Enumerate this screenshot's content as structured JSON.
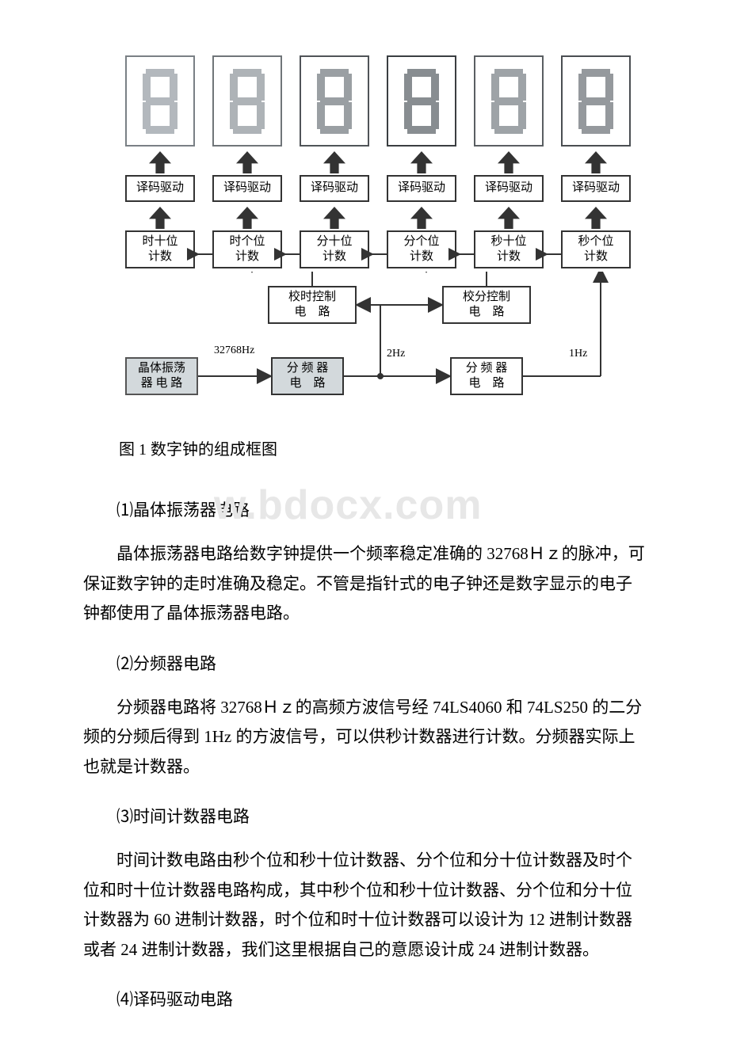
{
  "diagram": {
    "segments": [
      {
        "stroke": "#7a8085",
        "fill": "#b3b8bd"
      },
      {
        "stroke": "#707579",
        "fill": "#aeb3b7"
      },
      {
        "stroke": "#505458",
        "fill": "#9a9fa3"
      },
      {
        "stroke": "#3a3e41",
        "fill": "#888d91"
      },
      {
        "stroke": "#5a5e62",
        "fill": "#9ea3a7"
      },
      {
        "stroke": "#4a4e52",
        "fill": "#95999d"
      }
    ],
    "decode_label": "译码驱动",
    "count_labels": [
      "时十位\n计数",
      "时个位\n计数",
      "分十位\n计数",
      "分个位\n计数",
      "秒十位\n计数",
      "秒个位\n计数"
    ],
    "adj_hour_label": "校时控制\n电　路",
    "adj_min_label": "校分控制\n电　路",
    "osc_label": "晶体振荡\n器 电 路",
    "div1_label": "分 频 器\n电　路",
    "div2_label": "分 频 器\n电　路",
    "freq_osc": "32768Hz",
    "freq_out1": "2Hz",
    "freq_out2": "1Hz",
    "box_border": "#333333",
    "arrow_fill": "#333333"
  },
  "text": {
    "caption": "图 1 数字钟的组成框图",
    "watermark": "w.bdocx.com",
    "s1_title": "⑴晶体振荡器电路",
    "s1_body": "晶体振荡器电路给数字钟提供一个频率稳定准确的 32768Ｈｚ的脉冲，可保证数字钟的走时准确及稳定。不管是指针式的电子钟还是数字显示的电子钟都使用了晶体振荡器电路。",
    "s2_title": "⑵分频器电路",
    "s2_body": "分频器电路将 32768Ｈｚ的高频方波信号经 74LS4060 和 74LS250 的二分频的分频后得到 1Hz 的方波信号，可以供秒计数器进行计数。分频器实际上也就是计数器。",
    "s3_title": "⑶时间计数器电路",
    "s3_body": "时间计数电路由秒个位和秒十位计数器、分个位和分十位计数器及时个位和时十位计数器电路构成，其中秒个位和秒十位计数器、分个位和分十位计数器为 60 进制计数器，时个位和时十位计数器可以设计为 12 进制计数器或者 24 进制计数器，我们这里根据自己的意愿设计成 24 进制计数器。",
    "s4_title": "⑷译码驱动电路"
  }
}
